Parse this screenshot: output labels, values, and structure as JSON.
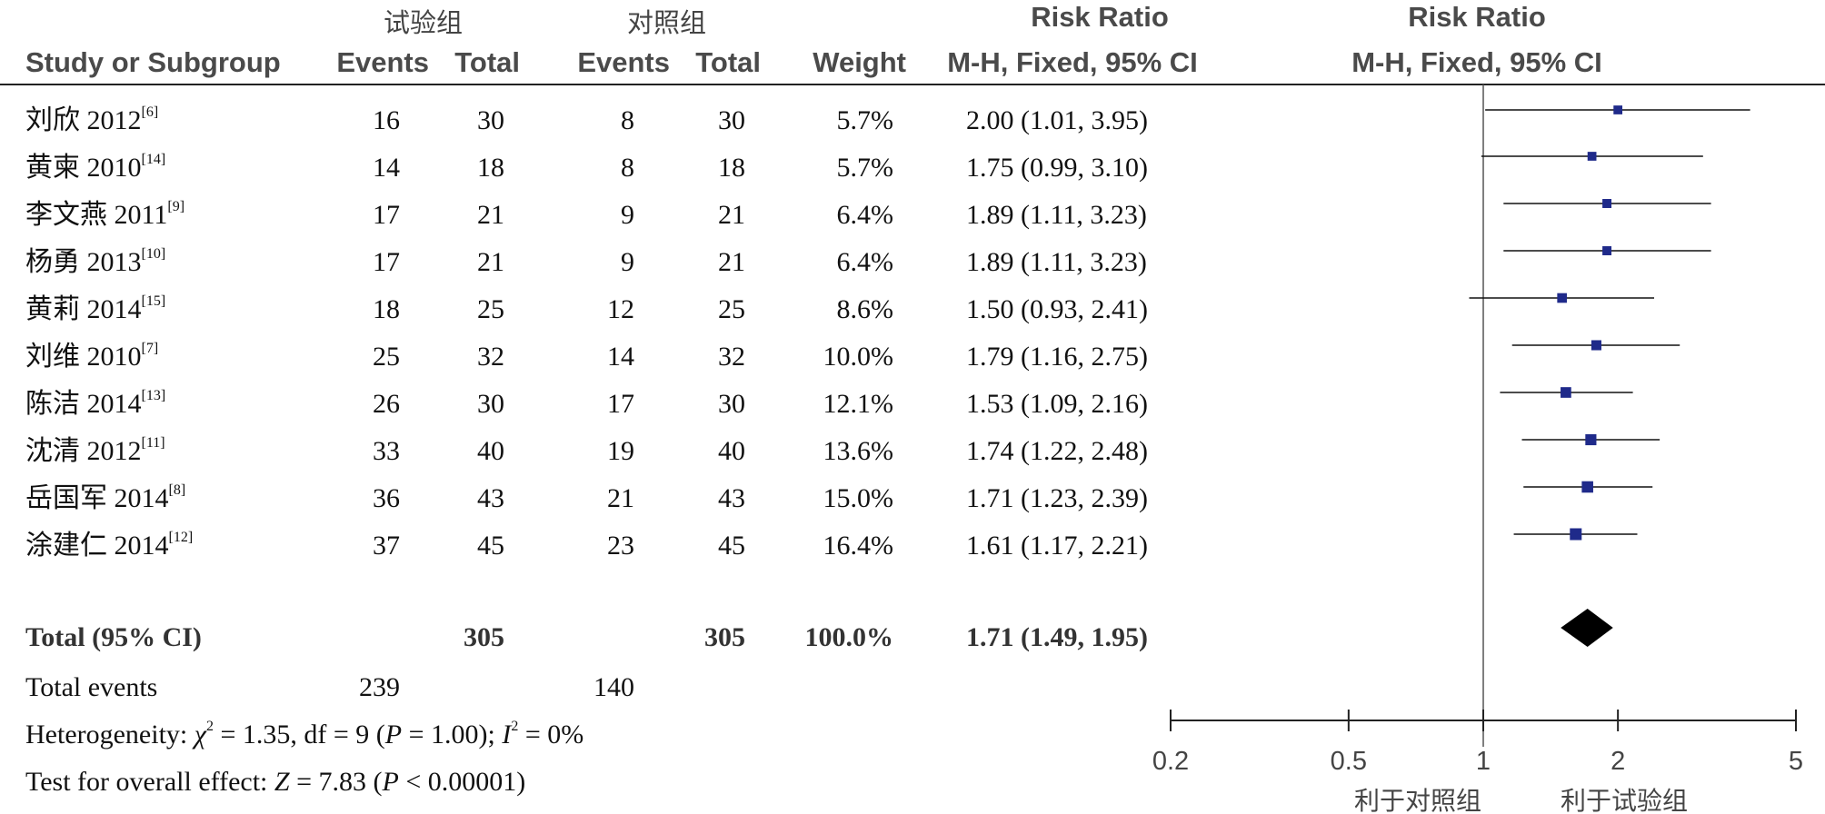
{
  "header": {
    "group_exp": "试验组",
    "group_ctrl": "对照组",
    "rr_title": "Risk Ratio",
    "rr_title_plot": "Risk Ratio",
    "col_study": "Study or Subgroup",
    "col_events_exp": "Events",
    "col_total_exp": "Total",
    "col_events_ctrl": "Events",
    "col_total_ctrl": "Total",
    "col_weight": "Weight",
    "col_method": "M-H, Fixed, 95% CI",
    "col_method_plot": "M-H, Fixed, 95% CI"
  },
  "chart_data": {
    "type": "forest",
    "scale": "log",
    "xlim": [
      0.2,
      5
    ],
    "x_ticks": [
      "0.2",
      "0.5",
      "1",
      "2",
      "5"
    ],
    "x_tick_values": [
      0.2,
      0.5,
      1,
      2,
      5
    ],
    "favours_left": "利于对照组",
    "favours_right": "利于试验组",
    "studies": [
      {
        "name": "刘欣 2012",
        "ref": "[6]",
        "e_exp": "16",
        "t_exp": "30",
        "e_ctrl": "8",
        "t_ctrl": "30",
        "weight": "5.7%",
        "ci_text": "2.00 (1.01, 3.95)",
        "rr": 2.0,
        "lo": 1.01,
        "hi": 3.95
      },
      {
        "name": "黄柬 2010",
        "ref": "[14]",
        "e_exp": "14",
        "t_exp": "18",
        "e_ctrl": "8",
        "t_ctrl": "18",
        "weight": "5.7%",
        "ci_text": "1.75 (0.99, 3.10)",
        "rr": 1.75,
        "lo": 0.99,
        "hi": 3.1
      },
      {
        "name": "李文燕 2011",
        "ref": "[9]",
        "e_exp": "17",
        "t_exp": "21",
        "e_ctrl": "9",
        "t_ctrl": "21",
        "weight": "6.4%",
        "ci_text": "1.89 (1.11, 3.23)",
        "rr": 1.89,
        "lo": 1.11,
        "hi": 3.23
      },
      {
        "name": "杨勇 2013",
        "ref": "[10]",
        "e_exp": "17",
        "t_exp": "21",
        "e_ctrl": "9",
        "t_ctrl": "21",
        "weight": "6.4%",
        "ci_text": "1.89 (1.11, 3.23)",
        "rr": 1.89,
        "lo": 1.11,
        "hi": 3.23
      },
      {
        "name": "黄莉 2014",
        "ref": "[15]",
        "e_exp": "18",
        "t_exp": "25",
        "e_ctrl": "12",
        "t_ctrl": "25",
        "weight": "8.6%",
        "ci_text": "1.50 (0.93, 2.41)",
        "rr": 1.5,
        "lo": 0.93,
        "hi": 2.41
      },
      {
        "name": "刘维 2010",
        "ref": "[7]",
        "e_exp": "25",
        "t_exp": "32",
        "e_ctrl": "14",
        "t_ctrl": "32",
        "weight": "10.0%",
        "ci_text": "1.79 (1.16, 2.75)",
        "rr": 1.79,
        "lo": 1.16,
        "hi": 2.75
      },
      {
        "name": "陈洁 2014",
        "ref": "[13]",
        "e_exp": "26",
        "t_exp": "30",
        "e_ctrl": "17",
        "t_ctrl": "30",
        "weight": "12.1%",
        "ci_text": "1.53 (1.09, 2.16)",
        "rr": 1.53,
        "lo": 1.09,
        "hi": 2.16
      },
      {
        "name": "沈清 2012",
        "ref": "[11]",
        "e_exp": "33",
        "t_exp": "40",
        "e_ctrl": "19",
        "t_ctrl": "40",
        "weight": "13.6%",
        "ci_text": "1.74 (1.22, 2.48)",
        "rr": 1.74,
        "lo": 1.22,
        "hi": 2.48
      },
      {
        "name": "岳国军 2014",
        "ref": "[8]",
        "e_exp": "36",
        "t_exp": "43",
        "e_ctrl": "21",
        "t_ctrl": "43",
        "weight": "15.0%",
        "ci_text": "1.71 (1.23, 2.39)",
        "rr": 1.71,
        "lo": 1.23,
        "hi": 2.39
      },
      {
        "name": "涂建仁 2014",
        "ref": "[12]",
        "e_exp": "37",
        "t_exp": "45",
        "e_ctrl": "23",
        "t_ctrl": "45",
        "weight": "16.4%",
        "ci_text": "1.61 (1.17, 2.21)",
        "rr": 1.61,
        "lo": 1.17,
        "hi": 2.21
      }
    ],
    "total": {
      "label": "Total (95% CI)",
      "t_exp": "305",
      "t_ctrl": "305",
      "weight": "100.0%",
      "ci_text": "1.71 (1.49, 1.95)",
      "rr": 1.71,
      "lo": 1.49,
      "hi": 1.95
    },
    "total_events": {
      "label": "Total events",
      "exp": "239",
      "ctrl": "140"
    },
    "heterogeneity": {
      "prefix": "Heterogeneity: ",
      "chi2_sym": "χ",
      "chi2_sup": "2",
      "chi2_text": " = 1.35, df = 9 (",
      "p_sym": "P",
      "p_text": " = 1.00); ",
      "i2_sym": "I",
      "i2_sup": "2",
      "i2_text": " = 0%"
    },
    "overall": {
      "prefix": "Test for overall effect: ",
      "z_sym": "Z",
      "z_text": " = 7.83 (",
      "p_sym": "P",
      "p_text": " < 0.00001)"
    }
  }
}
